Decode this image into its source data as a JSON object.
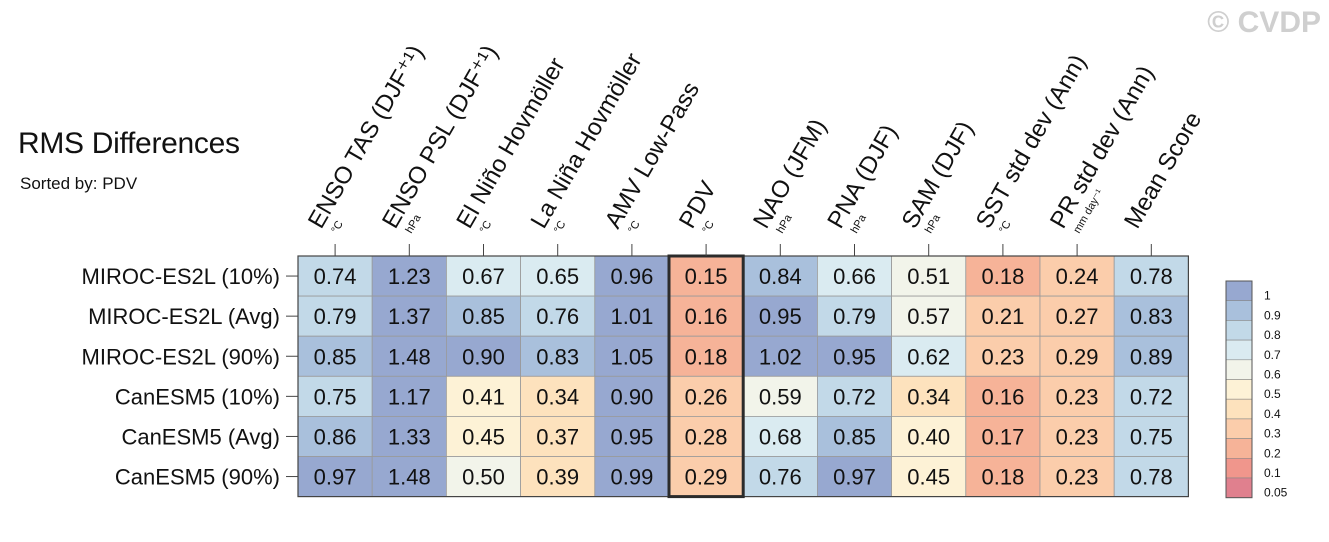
{
  "title": "RMS Differences",
  "subtitle": "Sorted by: PDV",
  "watermark": "© CVDP",
  "chart_data": {
    "type": "heatmap",
    "title": "RMS Differences",
    "subtitle": "Sorted by: PDV",
    "columns": [
      {
        "label": "ENSO TAS (DJF⁺¹)",
        "unit": "°C"
      },
      {
        "label": "ENSO PSL (DJF⁺¹)",
        "unit": "hPa"
      },
      {
        "label": "El Niño Hovmöller",
        "unit": "°C"
      },
      {
        "label": "La Niña Hovmöller",
        "unit": "°C"
      },
      {
        "label": "AMV Low-Pass",
        "unit": "°C"
      },
      {
        "label": "PDV",
        "unit": "°C"
      },
      {
        "label": "NAO (JFM)",
        "unit": "hPa"
      },
      {
        "label": "PNA (DJF)",
        "unit": "hPa"
      },
      {
        "label": "SAM (DJF)",
        "unit": "hPa"
      },
      {
        "label": "SST std dev (Ann)",
        "unit": "°C"
      },
      {
        "label": "PR std dev (Ann)",
        "unit": "mm day⁻¹"
      },
      {
        "label": "Mean Score",
        "unit": ""
      }
    ],
    "rows": [
      "MIROC-ES2L (10%)",
      "MIROC-ES2L (Avg)",
      "MIROC-ES2L (90%)",
      "CanESM5 (10%)",
      "CanESM5 (Avg)",
      "CanESM5 (90%)"
    ],
    "values": [
      [
        "0.74",
        "1.23",
        "0.67",
        "0.65",
        "0.96",
        "0.15",
        "0.84",
        "0.66",
        "0.51",
        "0.18",
        "0.24",
        "0.78"
      ],
      [
        "0.79",
        "1.37",
        "0.85",
        "0.76",
        "1.01",
        "0.16",
        "0.95",
        "0.79",
        "0.57",
        "0.21",
        "0.27",
        "0.83"
      ],
      [
        "0.85",
        "1.48",
        "0.90",
        "0.83",
        "1.05",
        "0.18",
        "1.02",
        "0.95",
        "0.62",
        "0.23",
        "0.29",
        "0.89"
      ],
      [
        "0.75",
        "1.17",
        "0.41",
        "0.34",
        "0.90",
        "0.26",
        "0.59",
        "0.72",
        "0.34",
        "0.16",
        "0.23",
        "0.72"
      ],
      [
        "0.86",
        "1.33",
        "0.45",
        "0.37",
        "0.95",
        "0.28",
        "0.68",
        "0.85",
        "0.40",
        "0.17",
        "0.23",
        "0.75"
      ],
      [
        "0.97",
        "1.48",
        "0.50",
        "0.39",
        "0.99",
        "0.29",
        "0.76",
        "0.97",
        "0.45",
        "0.18",
        "0.23",
        "0.78"
      ]
    ],
    "highlighted_column": "PDV",
    "legend": {
      "placement": "right",
      "labels": [
        "1",
        "0.9",
        "0.8",
        "0.7",
        "0.6",
        "0.5",
        "0.4",
        "0.3",
        "0.2",
        "0.1",
        "0.05"
      ],
      "colors": [
        "#97a8d0",
        "#a9c0dc",
        "#c2d9e8",
        "#daebf1",
        "#f2f4ea",
        "#fdf2d6",
        "#fde2bd",
        "#fbcdab",
        "#f6b398",
        "#f0968c",
        "#e0808e"
      ]
    }
  }
}
